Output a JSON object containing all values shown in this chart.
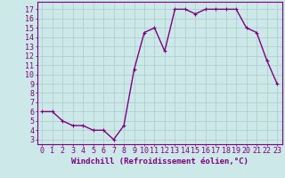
{
  "x": [
    0,
    1,
    2,
    3,
    4,
    5,
    6,
    7,
    8,
    9,
    10,
    11,
    12,
    13,
    14,
    15,
    16,
    17,
    18,
    19,
    20,
    21,
    22,
    23
  ],
  "y": [
    6,
    6,
    5,
    4.5,
    4.5,
    4,
    4,
    3,
    4.5,
    10.5,
    14.5,
    15,
    12.5,
    17,
    17,
    16.5,
    17,
    17,
    17,
    17,
    15,
    14.5,
    11.5,
    9
  ],
  "line_color": "#800080",
  "marker": "+",
  "marker_size": 3,
  "bg_color": "#cce8e8",
  "grid_color": "#aacccc",
  "xlabel": "Windchill (Refroidissement éolien,°C)",
  "xlabel_color": "#800080",
  "ylabel_ticks": [
    3,
    4,
    5,
    6,
    7,
    8,
    9,
    10,
    11,
    12,
    13,
    14,
    15,
    16,
    17
  ],
  "xtick_labels": [
    "0",
    "1",
    "2",
    "3",
    "4",
    "5",
    "6",
    "7",
    "8",
    "9",
    "10",
    "11",
    "12",
    "13",
    "14",
    "15",
    "16",
    "17",
    "18",
    "19",
    "20",
    "21",
    "22",
    "23"
  ],
  "ylim": [
    2.5,
    17.8
  ],
  "xlim": [
    -0.5,
    23.5
  ],
  "tick_color": "#800080",
  "axis_color": "#800080",
  "font_size": 6,
  "xlabel_font_size": 6.5,
  "line_width": 1.0
}
